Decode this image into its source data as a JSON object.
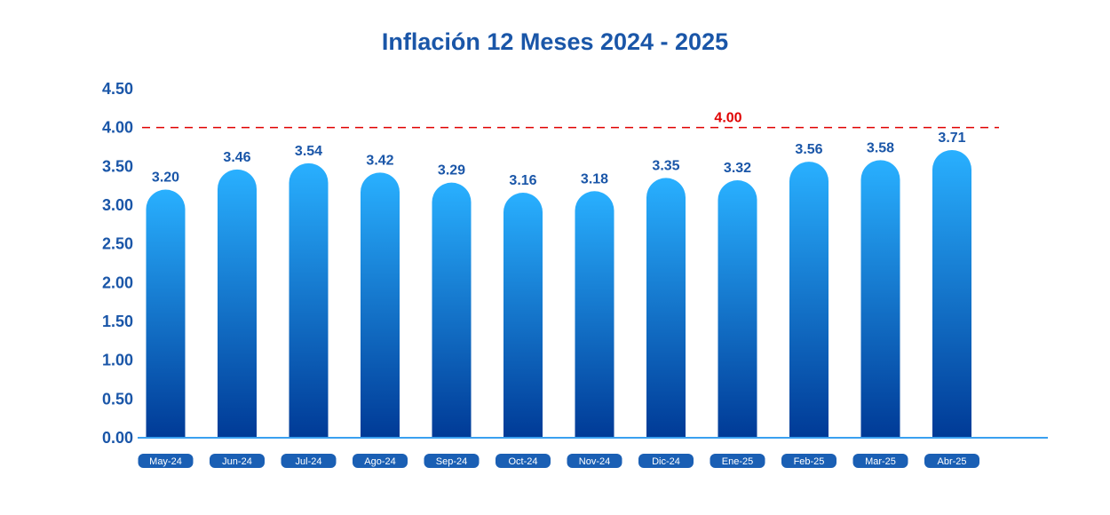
{
  "chart_data": {
    "type": "bar",
    "title": "Inflación 12 Meses 2024 - 2025",
    "xlabel": "",
    "ylabel": "",
    "categories": [
      "May-24",
      "Jun-24",
      "Jul-24",
      "Ago-24",
      "Sep-24",
      "Oct-24",
      "Nov-24",
      "Dic-24",
      "Ene-25",
      "Feb-25",
      "Mar-25",
      "Abr-25"
    ],
    "values": [
      3.2,
      3.46,
      3.54,
      3.42,
      3.29,
      3.16,
      3.18,
      3.35,
      3.32,
      3.56,
      3.58,
      3.71
    ],
    "value_labels": [
      "3.20",
      "3.46",
      "3.54",
      "3.42",
      "3.29",
      "3.16",
      "3.18",
      "3.35",
      "3.32",
      "3.56",
      "3.58",
      "3.71"
    ],
    "ylim": [
      0,
      4.5
    ],
    "yticks": [
      "0.00",
      "0.50",
      "1.00",
      "1.50",
      "2.00",
      "2.50",
      "3.00",
      "3.50",
      "4.00",
      "4.50"
    ],
    "reference_line": {
      "value": 4.0,
      "label": "4.00",
      "style": "dashed"
    },
    "grid": false,
    "legend": "none",
    "colors": {
      "bar_top": "#29b0ff",
      "bar_bottom": "#003a96",
      "text": "#1a56a8",
      "reference": "#e00000",
      "category_pill": "#1a5fb4",
      "axis": "#3aa0f0"
    }
  }
}
